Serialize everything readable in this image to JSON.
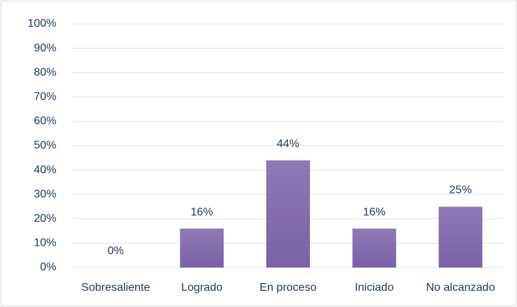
{
  "chart_data": {
    "type": "bar",
    "categories": [
      "Sobresaliente",
      "Logrado",
      "En proceso",
      "Iniciado",
      "No alcanzado"
    ],
    "values": [
      0,
      16,
      44,
      16,
      25
    ],
    "value_labels": [
      "0%",
      "16%",
      "44%",
      "16%",
      "25%"
    ],
    "color": "#7b61a8",
    "ylim": [
      0,
      100
    ],
    "yticks": [
      {
        "value": 0,
        "label": "0%"
      },
      {
        "value": 10,
        "label": "10%"
      },
      {
        "value": 20,
        "label": "20%"
      },
      {
        "value": 30,
        "label": "30%"
      },
      {
        "value": 40,
        "label": "40%"
      },
      {
        "value": 50,
        "label": "50%"
      },
      {
        "value": 60,
        "label": "60%"
      },
      {
        "value": 70,
        "label": "70%"
      },
      {
        "value": 80,
        "label": "80%"
      },
      {
        "value": 90,
        "label": "90%"
      },
      {
        "value": 100,
        "label": "100%"
      }
    ],
    "grid": true
  }
}
